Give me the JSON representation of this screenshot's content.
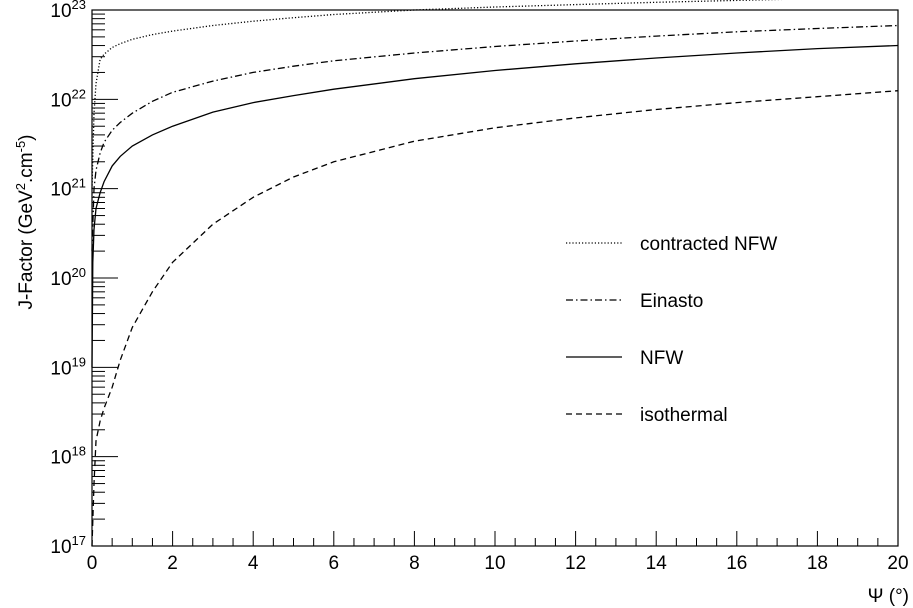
{
  "chart_data": {
    "type": "line",
    "title": "",
    "xlabel": "Ψ (°)",
    "ylabel": {
      "base": "J-Factor (GeV",
      "sup1": "2",
      "mid": ".cm",
      "sup2": "-5",
      "end": ")"
    },
    "xlim": [
      0,
      20
    ],
    "ylim": [
      1e+17,
      1e+23
    ],
    "yscale": "log",
    "grid": false,
    "legend_position": "right-middle",
    "x_ticks": [
      "0",
      "2",
      "4",
      "6",
      "8",
      "10",
      "12",
      "14",
      "16",
      "18",
      "20"
    ],
    "y_ticks": [
      {
        "base": "10",
        "exp": "17"
      },
      {
        "base": "10",
        "exp": "18"
      },
      {
        "base": "10",
        "exp": "19"
      },
      {
        "base": "10",
        "exp": "20"
      },
      {
        "base": "10",
        "exp": "21"
      },
      {
        "base": "10",
        "exp": "22"
      },
      {
        "base": "10",
        "exp": "23"
      }
    ],
    "series": [
      {
        "name": "contracted NFW",
        "dash": "dotted",
        "x": [
          0,
          0.05,
          0.1,
          0.2,
          0.3,
          0.5,
          0.7,
          1.0,
          1.5,
          2,
          3,
          4,
          5,
          6,
          8,
          10,
          12,
          14,
          16,
          18,
          20
        ],
        "y": [
          1e+21,
          7e+21,
          1.5e+22,
          2.8e+22,
          3.2e+22,
          3.8e+22,
          4.2e+22,
          4.7e+22,
          5.3e+22,
          5.8e+22,
          6.7e+22,
          7.5e+22,
          8.2e+22,
          8.9e+22,
          1e+23,
          1.08e+23,
          1.15e+23,
          1.22e+23,
          1.28e+23,
          1.34e+23,
          1.4e+23
        ]
      },
      {
        "name": "Einasto",
        "dash": "dashdot",
        "x": [
          0,
          0.05,
          0.1,
          0.2,
          0.3,
          0.5,
          0.7,
          1.0,
          1.5,
          2,
          3,
          4,
          5,
          6,
          8,
          10,
          12,
          14,
          16,
          18,
          20
        ],
        "y": [
          2e+20,
          1e+21,
          1.6e+21,
          2.5e+21,
          3.3e+21,
          4.5e+21,
          5.5e+21,
          7e+21,
          9.5e+21,
          1.2e+22,
          1.6e+22,
          2e+22,
          2.35e+22,
          2.7e+22,
          3.3e+22,
          3.9e+22,
          4.5e+22,
          5.1e+22,
          5.7e+22,
          6.2e+22,
          6.7e+22
        ]
      },
      {
        "name": "NFW",
        "dash": "solid",
        "x": [
          0,
          0.02,
          0.05,
          0.1,
          0.2,
          0.3,
          0.5,
          0.7,
          1.0,
          1.5,
          2,
          3,
          4,
          5,
          6,
          8,
          10,
          12,
          14,
          16,
          18,
          20
        ],
        "y": [
          1e+19,
          1.5e+20,
          3.5e+20,
          6e+20,
          9e+20,
          1.2e+21,
          1.8e+21,
          2.3e+21,
          3e+21,
          4e+21,
          5e+21,
          7.2e+21,
          9.2e+21,
          1.1e+22,
          1.3e+22,
          1.7e+22,
          2.1e+22,
          2.5e+22,
          2.9e+22,
          3.3e+22,
          3.7e+22,
          4e+22
        ]
      },
      {
        "name": "isothermal",
        "dash": "dashed",
        "x": [
          0,
          0.05,
          0.1,
          0.2,
          0.3,
          0.5,
          0.7,
          1.0,
          1.5,
          2,
          3,
          4,
          5,
          6,
          8,
          10,
          12,
          14,
          16,
          18,
          20
        ],
        "y": [
          1e+17,
          5e+17,
          1.5e+18,
          2.5e+18,
          3.5e+18,
          6e+18,
          1.2e+19,
          2.8e+19,
          7e+19,
          1.5e+20,
          4e+20,
          8e+20,
          1.35e+21,
          2e+21,
          3.4e+21,
          4.8e+21,
          6.2e+21,
          7.7e+21,
          9.2e+21,
          1.07e+22,
          1.25e+22
        ]
      }
    ]
  }
}
